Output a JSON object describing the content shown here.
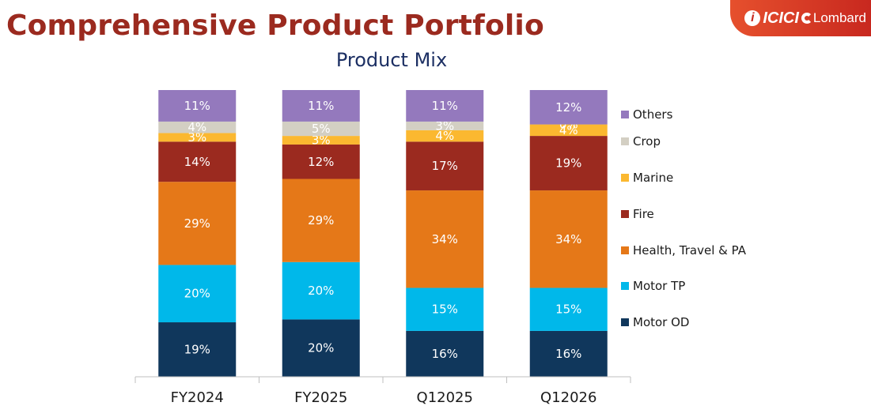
{
  "header": {
    "title": "Comprehensive Product Portfolio",
    "logo_mark": "i",
    "logo_brand": "ICICI",
    "logo_sub": "Lombard"
  },
  "chart_data": {
    "type": "bar",
    "stacked": true,
    "title": "Product Mix",
    "categories": [
      "FY2024",
      "FY2025",
      "Q12025",
      "Q12026"
    ],
    "series": [
      {
        "name": "Motor OD",
        "color": "#10375c",
        "values": [
          19,
          20,
          16,
          16
        ],
        "labels": [
          "19%",
          "20%",
          "16%",
          "16%"
        ]
      },
      {
        "name": "Motor TP",
        "color": "#00b8ea",
        "values": [
          20,
          20,
          15,
          15
        ],
        "labels": [
          "20%",
          "20%",
          "15%",
          "15%"
        ]
      },
      {
        "name": "Health, Travel & PA",
        "color": "#e57818",
        "values": [
          29,
          29,
          34,
          34
        ],
        "labels": [
          "29%",
          "29%",
          "34%",
          "34%"
        ]
      },
      {
        "name": "Fire",
        "color": "#9b2a1f",
        "values": [
          14,
          12,
          17,
          19
        ],
        "labels": [
          "14%",
          "12%",
          "17%",
          "19%"
        ]
      },
      {
        "name": "Marine",
        "color": "#fbb830",
        "values": [
          3,
          3,
          4,
          4
        ],
        "labels": [
          "3%",
          "3%",
          "4%",
          "4%"
        ]
      },
      {
        "name": "Crop",
        "color": "#d3cfc3",
        "values": [
          4,
          5,
          3,
          0
        ],
        "labels": [
          "4%",
          "5%",
          "3%",
          "0%"
        ]
      },
      {
        "name": "Others",
        "color": "#9479bd",
        "values": [
          11,
          11,
          11,
          12
        ],
        "labels": [
          "11%",
          "11%",
          "11%",
          "12%"
        ]
      }
    ],
    "legend_order": [
      "Others",
      "Crop",
      "Marine",
      "Fire",
      "Health, Travel & PA",
      "Motor TP",
      "Motor OD"
    ],
    "legend_position": "right",
    "ylim": [
      0,
      100
    ],
    "grid": false,
    "xlabel": "",
    "ylabel": ""
  }
}
